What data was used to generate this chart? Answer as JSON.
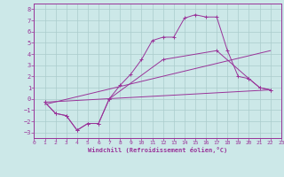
{
  "xlabel": "Windchill (Refroidissement éolien,°C)",
  "xlim": [
    0,
    23
  ],
  "ylim": [
    -3.5,
    8.5
  ],
  "xticks": [
    0,
    1,
    2,
    3,
    4,
    5,
    6,
    7,
    8,
    9,
    10,
    11,
    12,
    13,
    14,
    15,
    16,
    17,
    18,
    19,
    20,
    21,
    22,
    23
  ],
  "yticks": [
    -3,
    -2,
    -1,
    0,
    1,
    2,
    3,
    4,
    5,
    6,
    7,
    8
  ],
  "background_color": "#cce8e8",
  "grid_color": "#aacccc",
  "line_color": "#993399",
  "line1_x": [
    1,
    2,
    3,
    4,
    5,
    6,
    7,
    8,
    9,
    10,
    11,
    12,
    13,
    14,
    15,
    16,
    17,
    18,
    19,
    20,
    21,
    22
  ],
  "line1_y": [
    -0.3,
    -1.3,
    -1.5,
    -2.8,
    -2.2,
    -2.2,
    -0.0,
    1.2,
    2.2,
    3.5,
    5.2,
    5.5,
    5.5,
    7.2,
    7.5,
    7.3,
    7.3,
    4.3,
    2.0,
    1.8,
    1.0,
    0.8
  ],
  "line2_x": [
    1,
    2,
    3,
    4,
    5,
    6,
    7,
    12,
    17,
    20,
    21,
    22
  ],
  "line2_y": [
    -0.3,
    -1.3,
    -1.5,
    -2.8,
    -2.2,
    -2.2,
    -0.0,
    3.5,
    4.3,
    1.8,
    1.0,
    0.8
  ],
  "line3_x": [
    1,
    22
  ],
  "line3_y": [
    -0.3,
    0.8
  ],
  "line4_x": [
    1,
    22
  ],
  "line4_y": [
    -0.5,
    4.3
  ]
}
